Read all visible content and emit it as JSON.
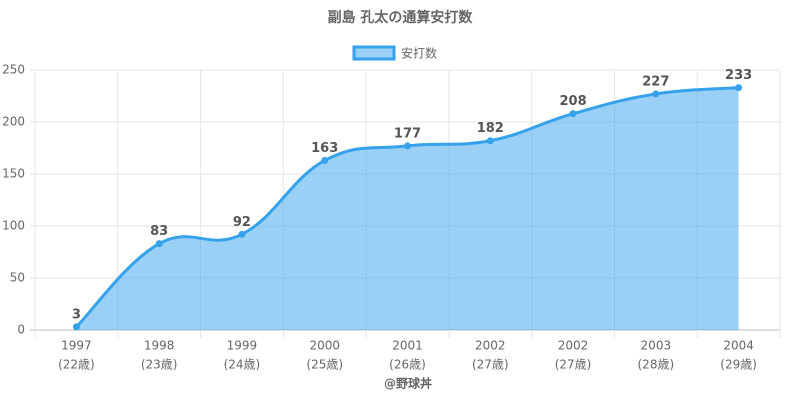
{
  "chart_data": {
    "type": "area",
    "title": "副島 孔太の通算安打数",
    "categories": [
      "1997",
      "1998",
      "1999",
      "2000",
      "2001",
      "2002",
      "2002",
      "2003",
      "2004"
    ],
    "category_sublabels": [
      "(22歳)",
      "(23歳)",
      "(24歳)",
      "(25歳)",
      "(26歳)",
      "(27歳)",
      "(27歳)",
      "(28歳)",
      "(29歳)"
    ],
    "series": [
      {
        "name": "安打数",
        "color": "#36a2eb",
        "values": [
          3,
          83,
          92,
          163,
          177,
          182,
          208,
          227,
          233
        ]
      }
    ],
    "xlabel": "@野球丼",
    "ylim": [
      0,
      250
    ],
    "yticks": [
      0,
      50,
      100,
      150,
      200,
      250
    ],
    "grid": true,
    "legend": "top"
  }
}
